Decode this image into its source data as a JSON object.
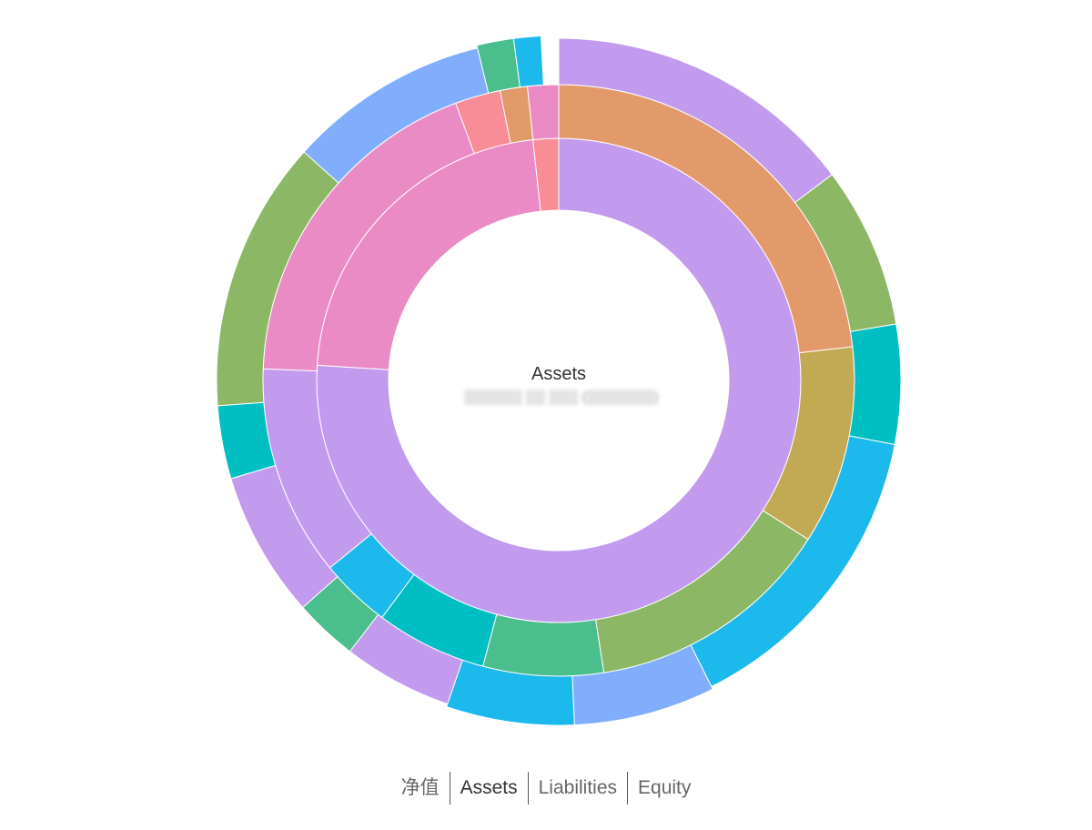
{
  "chart_data": {
    "type": "sunburst",
    "center_label": "Assets",
    "center_sublabel": "▒▒▒▒▒▒ ▒▒ ▒▒▒ (▒▒▒▒▒▒▒)",
    "ring_inner": [
      {
        "value": 76.0,
        "color": "#c39bee"
      },
      {
        "value": 22.3,
        "color": "#ea8bc6"
      },
      {
        "value": 1.7,
        "color": "#f98d96"
      }
    ],
    "ring_middle": [
      {
        "value": 23.3,
        "color": "#e39a6b"
      },
      {
        "value": 10.9,
        "color": "#c2a954"
      },
      {
        "value": 13.6,
        "color": "#8cb865"
      },
      {
        "value": 6.6,
        "color": "#4bbe8e"
      },
      {
        "value": 6.1,
        "color": "#00bfc2"
      },
      {
        "value": 3.9,
        "color": "#1bb9ec"
      },
      {
        "value": 11.6,
        "color": "#c39bee"
      },
      {
        "value": 18.8,
        "color": "#ea8bc6"
      },
      {
        "value": 2.5,
        "color": "#f98d96"
      },
      {
        "value": 1.5,
        "color": "#e39a6b"
      },
      {
        "value": 1.7,
        "color": "#ea8bc6"
      }
    ],
    "ring_outer": [
      {
        "value": 16.2,
        "color": "#c39bee"
      },
      {
        "value": 8.4,
        "color": "#8cb865"
      },
      {
        "value": 6.2,
        "color": "#00bfc2"
      },
      {
        "value": 16.1,
        "color": "#1bb9ec",
        "radial_scale": 1.0
      },
      {
        "value": 7.3,
        "color": "#80aefc",
        "radial_scale": 1.06
      },
      {
        "value": 6.6,
        "color": "#1bb9ec",
        "radial_scale": 1.06
      },
      {
        "value": 5.7,
        "color": "#c39bee",
        "radial_scale": 1.0
      },
      {
        "value": 3.3,
        "color": "#4bbe8e",
        "radial_scale": 1.0
      },
      {
        "value": 7.6,
        "color": "#c39bee"
      },
      {
        "value": 3.8,
        "color": "#00bfc2"
      },
      {
        "value": 14.1,
        "color": "#8cb865"
      },
      {
        "value": 10.5,
        "color": "#80aefc"
      },
      {
        "value": 1.9,
        "color": "#4bbe8e",
        "radial_scale": 1.06
      },
      {
        "value": 1.4,
        "color": "#1bb9ec",
        "radial_scale": 1.06
      },
      {
        "value": 0.9,
        "color": null
      }
    ]
  },
  "legend": [
    {
      "label": "净值",
      "active": false
    },
    {
      "label": "Assets",
      "active": true
    },
    {
      "label": "Liabilities",
      "active": false
    },
    {
      "label": "Equity",
      "active": false
    }
  ]
}
